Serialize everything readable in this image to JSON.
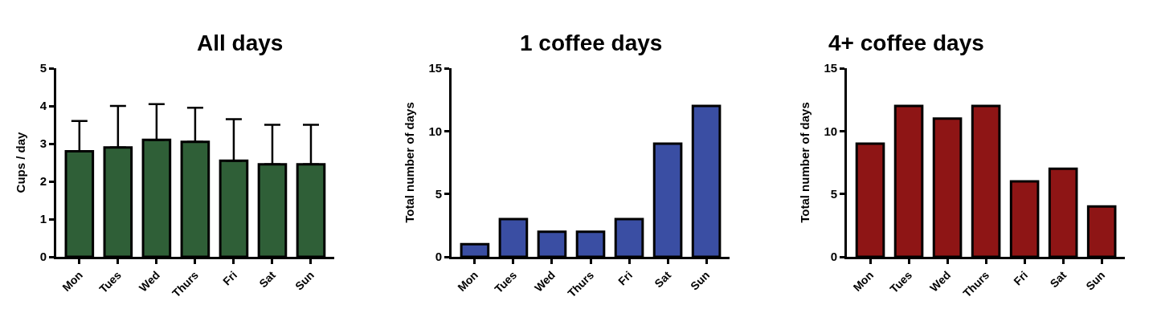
{
  "chart_data": [
    {
      "type": "bar",
      "title": "All days",
      "ylabel": "Cups / day",
      "categories": [
        "Mon",
        "Tues",
        "Wed",
        "Thurs",
        "Fri",
        "Sat",
        "Sun"
      ],
      "values": [
        2.8,
        2.9,
        3.1,
        3.05,
        2.55,
        2.45,
        2.45
      ],
      "errors": [
        [
          2.8,
          3.6
        ],
        [
          2.9,
          4.0
        ],
        [
          3.1,
          4.05
        ],
        [
          3.05,
          3.95
        ],
        [
          2.55,
          3.65
        ],
        [
          2.45,
          3.5
        ],
        [
          2.45,
          3.5
        ]
      ],
      "color": "#2f5f37",
      "ylim": [
        0,
        5
      ],
      "yticks": [
        0,
        1,
        2,
        3,
        4,
        5
      ]
    },
    {
      "type": "bar",
      "title": "1 coffee days",
      "ylabel": "Total number of days",
      "categories": [
        "Mon",
        "Tues",
        "Wed",
        "Thurs",
        "Fri",
        "Sat",
        "Sun"
      ],
      "values": [
        1,
        3,
        2,
        2,
        3,
        9,
        12
      ],
      "color": "#3a4ea3",
      "ylim": [
        0,
        15
      ],
      "yticks": [
        0,
        5,
        10,
        15
      ]
    },
    {
      "type": "bar",
      "title": "4+ coffee days",
      "ylabel": "Total number of days",
      "categories": [
        "Mon",
        "Tues",
        "Wed",
        "Thurs",
        "Fri",
        "Sat",
        "Sun"
      ],
      "values": [
        9,
        12,
        11,
        12,
        6,
        7,
        4
      ],
      "color": "#8e1515",
      "ylim": [
        0,
        15
      ],
      "yticks": [
        0,
        5,
        10,
        15
      ]
    }
  ]
}
